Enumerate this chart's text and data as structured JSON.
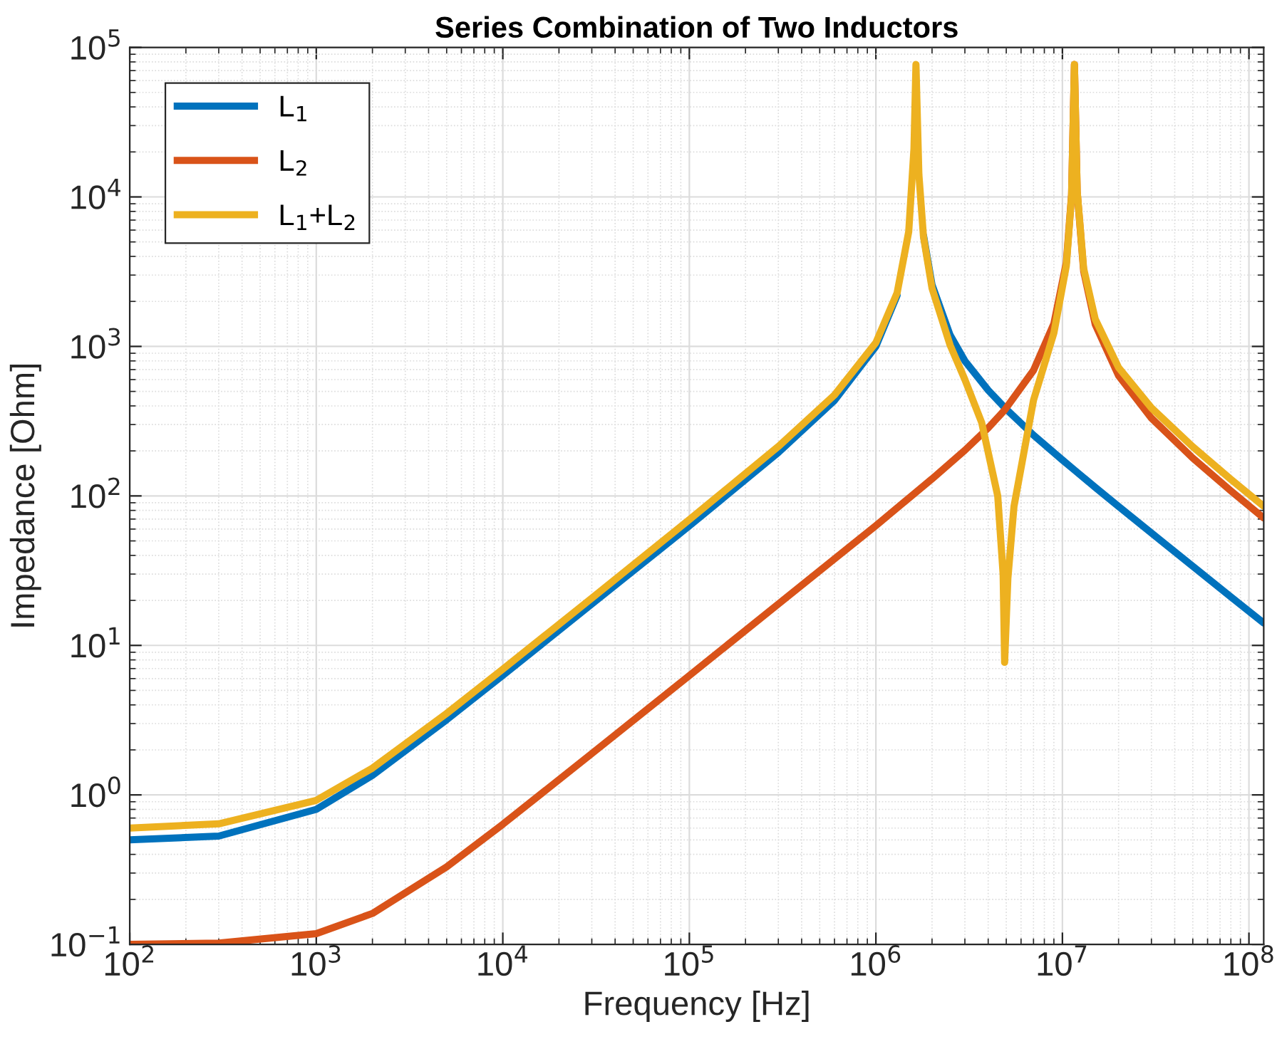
{
  "chart_data": {
    "type": "line",
    "title": "Series Combination of Two Inductors",
    "xlabel": "Frequency [Hz]",
    "ylabel": "Impedance [Ohm]",
    "log": "xy",
    "grid": true,
    "legend": "top left",
    "xlim": [
      100,
      120000000.0
    ],
    "ylim": [
      0.1,
      100000
    ],
    "xticks": [
      {
        "value": 100,
        "label": "10$^{2}$"
      },
      {
        "value": 1000,
        "label": "10$^{3}$"
      },
      {
        "value": 10000,
        "label": "10$^{4}$"
      },
      {
        "value": 100000,
        "label": "10$^{5}$"
      },
      {
        "value": 1000000,
        "label": "10$^{6}$"
      },
      {
        "value": 10000000,
        "label": "10$^{7}$"
      },
      {
        "value": 100000000,
        "label": "10$^{8}$"
      }
    ],
    "yticks": [
      {
        "value": 0.1,
        "label": "10$^{−1}$"
      },
      {
        "value": 1,
        "label": "10$^{0}$"
      },
      {
        "value": 10,
        "label": "10$^{1}$"
      },
      {
        "value": 100,
        "label": "10$^{2}$"
      },
      {
        "value": 1000,
        "label": "10$^{3}$"
      },
      {
        "value": 10000,
        "label": "10$^{4}$"
      },
      {
        "value": 100000,
        "label": "10$^{5}$"
      }
    ],
    "series": [
      {
        "name": "L$_{1}$",
        "color": "#0072bd",
        "x": [
          100,
          300,
          1000,
          2000,
          5000,
          10000,
          30000,
          100000,
          300000,
          600000,
          1000000,
          1300000,
          1500000,
          1600000,
          1640000,
          1700000,
          1800000,
          2000000,
          2500000,
          3000000,
          4000000,
          4900000,
          7000000,
          10000000,
          11600000,
          15000000,
          20000000,
          30000000,
          50000000,
          80000000,
          120000000
        ],
        "values": [
          0.5,
          0.53,
          0.8,
          1.35,
          3.18,
          6.3,
          18.9,
          63,
          195,
          435,
          1000,
          2200,
          null,
          null,
          null,
          null,
          5530,
          2580,
          1190,
          800,
          510,
          390,
          255,
          174,
          149,
          114,
          85,
          56.5,
          33.8,
          21.1,
          14.1
        ]
      },
      {
        "name": "L$_{2}$",
        "color": "#d95319",
        "x": [
          100,
          300,
          1000,
          2000,
          5000,
          10000,
          30000,
          100000,
          300000,
          1000000,
          2000000,
          3000000,
          4000000,
          4900000,
          7000000,
          9000000,
          10500000,
          11200000,
          11600000,
          12000000,
          13000000,
          15000000,
          20000000,
          30000000,
          50000000,
          80000000,
          120000000
        ],
        "values": [
          0.1,
          0.102,
          0.118,
          0.161,
          0.33,
          0.636,
          1.89,
          6.28,
          18.9,
          63.3,
          130,
          202,
          285,
          375,
          692,
          1420,
          3650,
          10400,
          77000,
          10800,
          3190,
          1400,
          637,
          331,
          179,
          108,
          71.1
        ]
      },
      {
        "name": "L$_{1}$+L$_{2}$",
        "color": "#edb120",
        "x": [
          100,
          300,
          1000,
          2000,
          5000,
          10000,
          30000,
          100000,
          300000,
          600000,
          1000000,
          1300000,
          1500000,
          1600000,
          1640000,
          1700000,
          1800000,
          2000000,
          2500000,
          3000000,
          3690000,
          4500000,
          4810000,
          4900000,
          5100000,
          5500000,
          7000000,
          9000000,
          10500000,
          11200000,
          11600000,
          12000000,
          13000000,
          15000000,
          20000000,
          30000000,
          50000000,
          80000000,
          120000000
        ],
        "values": [
          0.6,
          0.64,
          0.92,
          1.51,
          3.51,
          6.94,
          20.7,
          69.4,
          214,
          473,
          1060,
          2280,
          5860,
          20950,
          77000,
          14200,
          5410,
          2450,
          1020,
          600,
          310,
          100,
          30,
          7.7,
          28,
          85,
          437,
          1230,
          3480,
          10200,
          77000,
          10900,
          3320,
          1520,
          722,
          388,
          213,
          129,
          85.2
        ]
      }
    ]
  }
}
